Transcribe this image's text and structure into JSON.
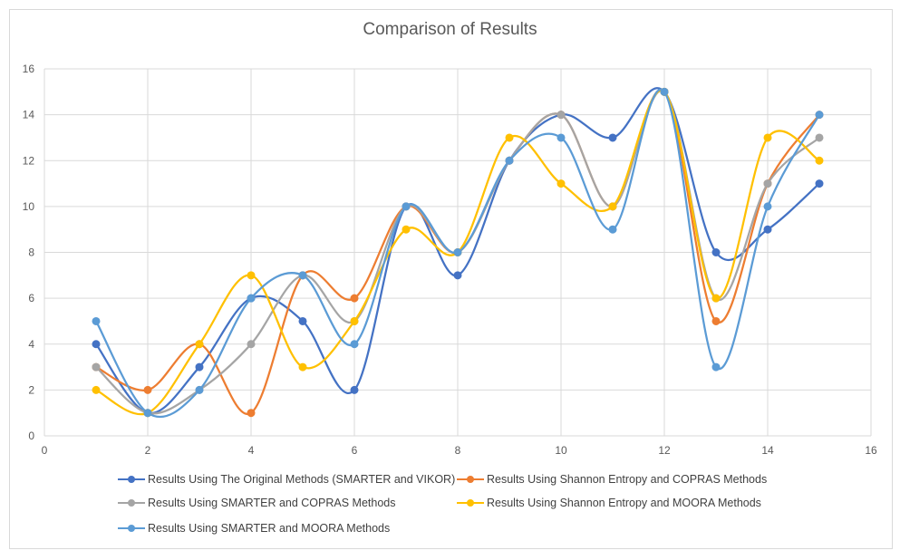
{
  "chart_data": {
    "type": "line",
    "title": "Comparison of Results",
    "xlabel": "",
    "ylabel": "",
    "xlim": [
      0,
      16
    ],
    "ylim": [
      0,
      16
    ],
    "xticks": [
      0,
      2,
      4,
      6,
      8,
      10,
      12,
      14,
      16
    ],
    "yticks": [
      0,
      2,
      4,
      6,
      8,
      10,
      12,
      14,
      16
    ],
    "grid": true,
    "smooth": true,
    "legend_position": "bottom",
    "x": [
      1,
      2,
      3,
      4,
      5,
      6,
      7,
      8,
      9,
      10,
      11,
      12,
      13,
      14,
      15
    ],
    "series": [
      {
        "name": "Results Using The Original Methods (SMARTER and VIKOR)",
        "color": "#4472c4",
        "values": [
          4,
          1,
          3,
          6,
          5,
          2,
          10,
          7,
          12,
          14,
          13,
          15,
          8,
          9,
          11
        ]
      },
      {
        "name": "Results Using Shannon Entropy and COPRAS Methods",
        "color": "#ed7d31",
        "values": [
          3,
          2,
          4,
          1,
          7,
          6,
          10,
          8,
          12,
          14,
          10,
          15,
          5,
          11,
          14
        ]
      },
      {
        "name": "Results Using SMARTER and COPRAS Methods",
        "color": "#a5a5a5",
        "values": [
          3,
          1,
          2,
          4,
          7,
          5,
          10,
          8,
          12,
          14,
          10,
          15,
          6,
          11,
          13
        ]
      },
      {
        "name": "Results Using Shannon Entropy and MOORA Methods",
        "color": "#ffc000",
        "values": [
          2,
          1,
          4,
          7,
          3,
          5,
          9,
          8,
          13,
          11,
          10,
          15,
          6,
          13,
          12
        ]
      },
      {
        "name": "Results Using SMARTER and MOORA Methods",
        "color": "#5b9bd5",
        "values": [
          5,
          1,
          2,
          6,
          7,
          4,
          10,
          8,
          12,
          13,
          9,
          15,
          3,
          10,
          14
        ]
      }
    ]
  }
}
